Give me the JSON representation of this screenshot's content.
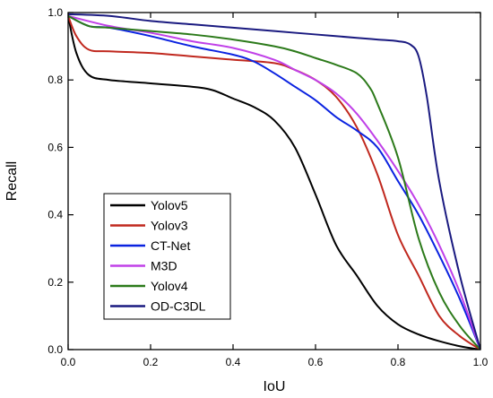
{
  "chart_data": {
    "type": "line",
    "xlabel": "IoU",
    "ylabel": "Recall",
    "xlim": [
      0.0,
      1.0
    ],
    "ylim": [
      0.0,
      1.0
    ],
    "xticks": [
      "0.0",
      "0.2",
      "0.4",
      "0.6",
      "0.8",
      "1.0"
    ],
    "yticks": [
      "0.0",
      "0.2",
      "0.4",
      "0.6",
      "0.8",
      "1.0"
    ],
    "grid": false,
    "legend_position": "lower-left",
    "series": [
      {
        "name": "Yolov5",
        "color": "#000000",
        "x": [
          0.0,
          0.02,
          0.05,
          0.1,
          0.2,
          0.3,
          0.35,
          0.4,
          0.45,
          0.5,
          0.55,
          0.6,
          0.65,
          0.7,
          0.75,
          0.8,
          0.85,
          0.9,
          0.95,
          1.0
        ],
        "y": [
          0.99,
          0.88,
          0.815,
          0.8,
          0.79,
          0.78,
          0.77,
          0.745,
          0.72,
          0.68,
          0.6,
          0.46,
          0.31,
          0.22,
          0.13,
          0.075,
          0.045,
          0.025,
          0.01,
          0.0
        ]
      },
      {
        "name": "Yolov3",
        "color": "#c0281e",
        "x": [
          0.0,
          0.02,
          0.05,
          0.1,
          0.2,
          0.3,
          0.4,
          0.5,
          0.55,
          0.6,
          0.65,
          0.7,
          0.75,
          0.8,
          0.85,
          0.9,
          0.95,
          1.0
        ],
        "y": [
          0.99,
          0.93,
          0.89,
          0.885,
          0.88,
          0.87,
          0.86,
          0.85,
          0.83,
          0.8,
          0.75,
          0.66,
          0.52,
          0.34,
          0.22,
          0.1,
          0.04,
          0.0
        ]
      },
      {
        "name": "CT-Net",
        "color": "#0a22e0",
        "x": [
          0.0,
          0.05,
          0.1,
          0.2,
          0.3,
          0.4,
          0.45,
          0.5,
          0.55,
          0.6,
          0.65,
          0.7,
          0.75,
          0.8,
          0.85,
          0.9,
          0.95,
          1.0
        ],
        "y": [
          0.99,
          0.96,
          0.955,
          0.93,
          0.9,
          0.875,
          0.855,
          0.82,
          0.78,
          0.74,
          0.69,
          0.65,
          0.6,
          0.5,
          0.4,
          0.28,
          0.15,
          0.0
        ]
      },
      {
        "name": "M3D",
        "color": "#c040e8",
        "x": [
          0.0,
          0.1,
          0.2,
          0.3,
          0.4,
          0.5,
          0.55,
          0.6,
          0.65,
          0.7,
          0.75,
          0.8,
          0.85,
          0.9,
          0.95,
          1.0
        ],
        "y": [
          0.99,
          0.96,
          0.94,
          0.915,
          0.895,
          0.86,
          0.83,
          0.8,
          0.76,
          0.7,
          0.62,
          0.53,
          0.43,
          0.31,
          0.17,
          0.0
        ]
      },
      {
        "name": "Yolov4",
        "color": "#2c7a1a",
        "x": [
          0.0,
          0.05,
          0.1,
          0.2,
          0.3,
          0.4,
          0.5,
          0.55,
          0.6,
          0.65,
          0.7,
          0.73,
          0.75,
          0.8,
          0.85,
          0.9,
          0.95,
          1.0
        ],
        "y": [
          0.99,
          0.96,
          0.955,
          0.945,
          0.935,
          0.92,
          0.9,
          0.885,
          0.865,
          0.845,
          0.82,
          0.78,
          0.73,
          0.57,
          0.33,
          0.17,
          0.07,
          0.0
        ]
      },
      {
        "name": "OD-C3DL",
        "color": "#1a1a80",
        "x": [
          0.0,
          0.1,
          0.2,
          0.3,
          0.4,
          0.5,
          0.6,
          0.7,
          0.75,
          0.8,
          0.83,
          0.85,
          0.87,
          0.9,
          0.95,
          1.0
        ],
        "y": [
          0.995,
          0.99,
          0.975,
          0.965,
          0.955,
          0.945,
          0.935,
          0.925,
          0.92,
          0.915,
          0.905,
          0.87,
          0.75,
          0.5,
          0.22,
          0.0
        ]
      }
    ]
  }
}
